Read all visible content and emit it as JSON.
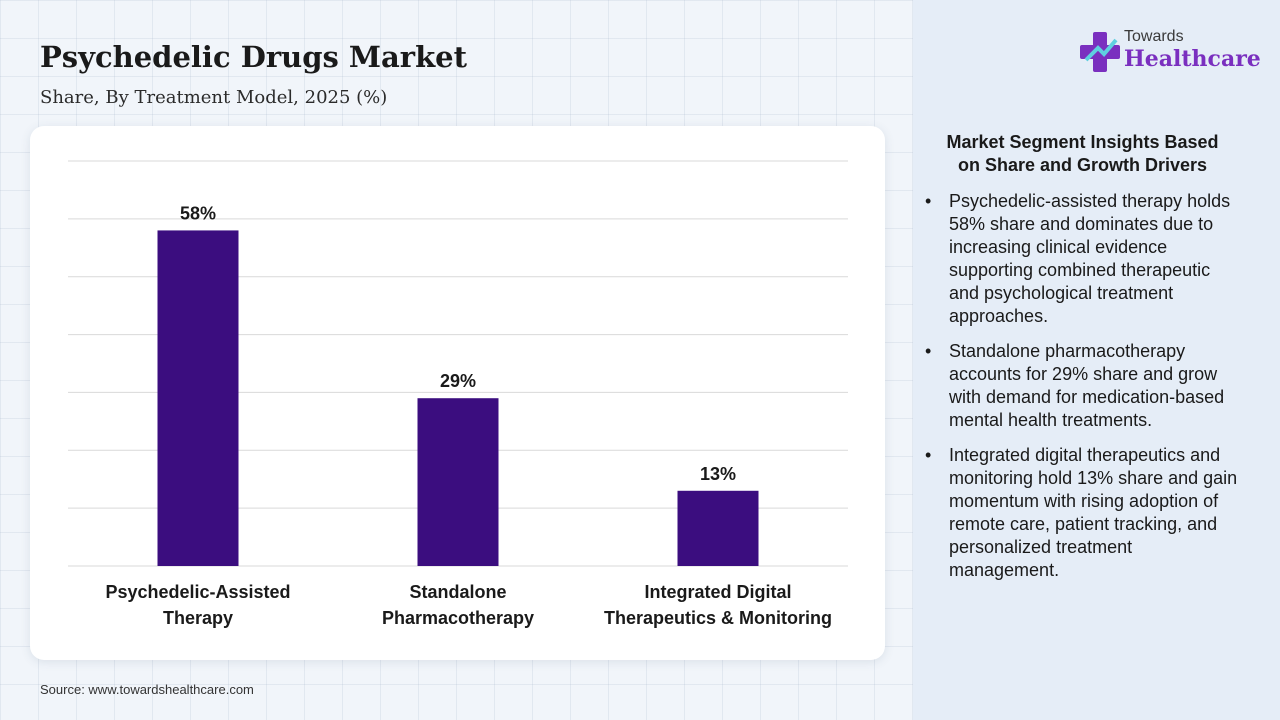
{
  "title": "Psychedelic Drugs Market",
  "subtitle": "Share, By Treatment Model, 2025 (%)",
  "source": "Source: www.towardshealthcare.com",
  "logo": {
    "top": "Towards",
    "main": "Healthcare"
  },
  "colors": {
    "bar": "#3b0d7f",
    "accent": "#7a2fbf"
  },
  "chart_data": {
    "type": "bar",
    "categories": [
      "Psychedelic-Assisted\nTherapy",
      "Standalone\nPharmacotherapy",
      "Integrated Digital\nTherapeutics & Monitoring"
    ],
    "values": [
      58,
      29,
      13
    ],
    "value_labels": [
      "58%",
      "29%",
      "13%"
    ],
    "ylim": [
      0,
      70
    ],
    "grid": true,
    "xlabel": "",
    "ylabel": ""
  },
  "insights": {
    "title": "Market Segment Insights Based\non Share and Growth Drivers",
    "bullet": "•",
    "items": [
      "Psychedelic-assisted therapy holds 58% share and dominates due to increasing clinical evidence supporting combined therapeutic and psychological treatment approaches.",
      "Standalone pharmacotherapy accounts for 29% share and grow with demand for medication-based mental health treatments.",
      "Integrated digital therapeutics and monitoring hold 13% share and gain momentum with rising adoption of remote care, patient tracking, and personalized treatment management."
    ]
  }
}
